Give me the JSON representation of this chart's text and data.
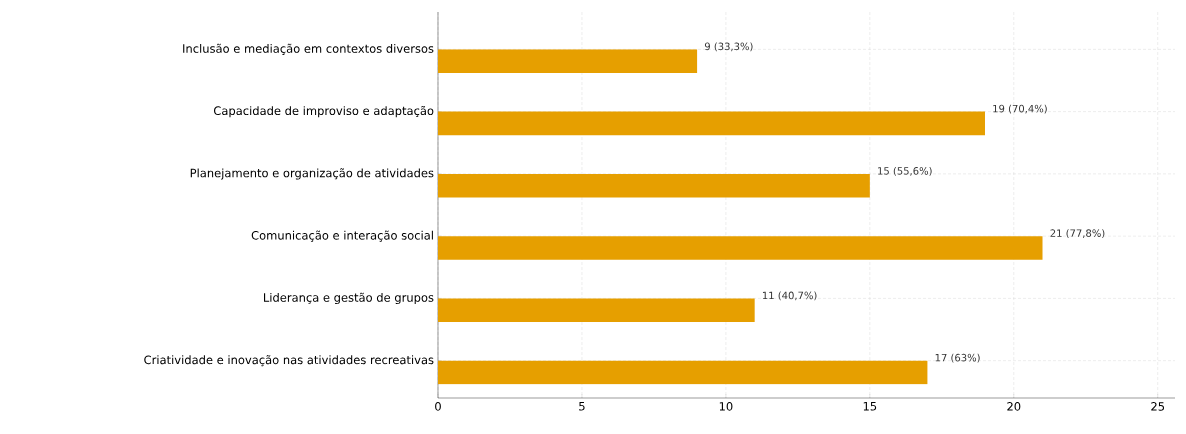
{
  "chart_data": {
    "type": "bar",
    "orientation": "horizontal",
    "categories": [
      "Inclusão e mediação em contextos diversos",
      "Capacidade de improviso e adaptação",
      "Planejamento e organização de atividades",
      "Comunicação e interação social",
      "Liderança e gestão de grupos",
      "Criatividade e inovação nas atividades recreativas"
    ],
    "values": [
      9,
      19,
      15,
      21,
      11,
      17
    ],
    "value_labels": [
      "9 (33,3%)",
      "19 (70,4%)",
      "15 (55,6%)",
      "21 (77,8%)",
      "11 (40,7%)",
      "17 (63%)"
    ],
    "color": "#e69f00",
    "xlim": [
      0,
      25.6
    ],
    "xticks": [
      0,
      5,
      10,
      15,
      20,
      25
    ],
    "grid": true
  }
}
